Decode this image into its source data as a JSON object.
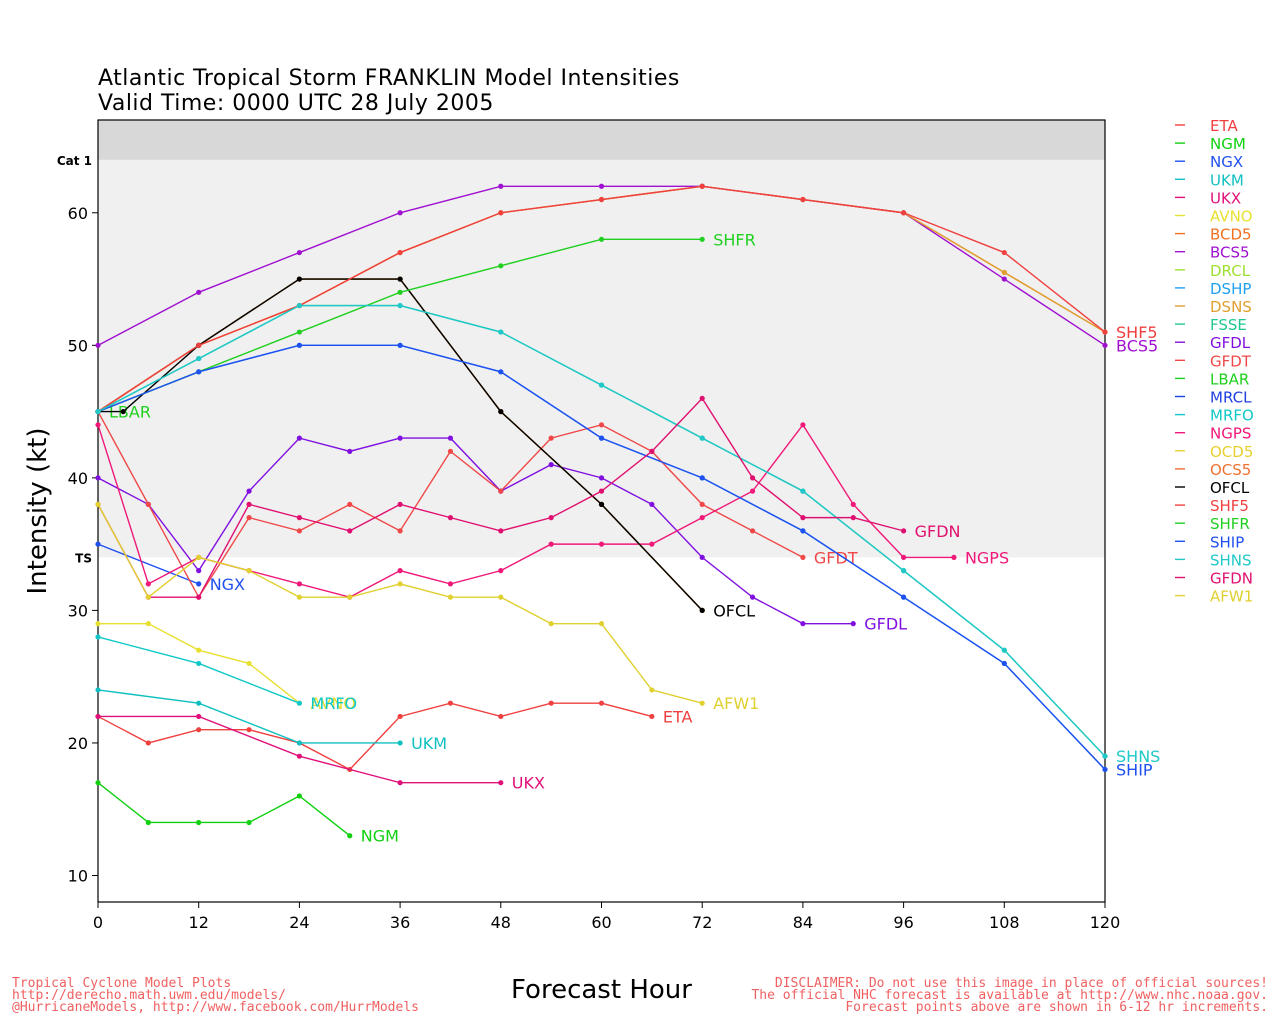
{
  "title": {
    "line1": "Atlantic Tropical Storm FRANKLIN Model Intensities",
    "line2": "Valid Time: 0000 UTC 28 July 2005"
  },
  "footer": {
    "left": [
      "Tropical Cyclone Model Plots",
      "http://derecho.math.uwm.edu/models/",
      "@HurricaneModels, http://www.facebook.com/HurrModels"
    ],
    "right": [
      "DISCLAIMER: Do not use this image in place of official sources!",
      "The official NHC forecast is available at http://www.nhc.noaa.gov.",
      "Forecast points above are shown in 6-12 hr increments."
    ]
  },
  "chart_data": {
    "type": "line",
    "title": "Atlantic Tropical Storm FRANKLIN Model Intensities",
    "subtitle": "Valid Time: 0000 UTC 28 July 2005",
    "xlabel": "Forecast Hour",
    "ylabel": "Intensity (kt)",
    "xlim": [
      0,
      120
    ],
    "ylim": [
      8,
      67
    ],
    "x_ticks": [
      0,
      12,
      24,
      36,
      48,
      60,
      72,
      84,
      96,
      108,
      120
    ],
    "y_ticks": [
      10,
      20,
      30,
      40,
      50,
      60
    ],
    "bands": [
      {
        "label": "TS",
        "from": 34,
        "to": 64,
        "color": "#f0f0f0"
      },
      {
        "label": "Cat 1",
        "from": 64,
        "to": 67,
        "color": "#d8d8d8"
      }
    ],
    "legend_position": "right",
    "series": [
      {
        "name": "ETA",
        "color": "#f04040",
        "x": [
          0,
          6,
          12,
          18,
          24,
          30,
          36,
          42,
          48,
          54,
          60,
          66
        ],
        "y": [
          22,
          20,
          21,
          21,
          20,
          18,
          22,
          23,
          22,
          23,
          23,
          22
        ],
        "label": "ETA"
      },
      {
        "name": "NGM",
        "color": "#10d010",
        "x": [
          0,
          6,
          12,
          18,
          24,
          30
        ],
        "y": [
          17,
          14,
          14,
          14,
          16,
          13
        ],
        "label": "NGM"
      },
      {
        "name": "NGX",
        "color": "#2050f0",
        "x": [
          0,
          12
        ],
        "y": [
          35,
          32
        ],
        "label": "NGX"
      },
      {
        "name": "UKM",
        "color": "#10c0c0",
        "x": [
          0,
          12,
          24,
          36
        ],
        "y": [
          24,
          23,
          20,
          20
        ],
        "label": "UKM"
      },
      {
        "name": "UKX",
        "color": "#e0107a",
        "x": [
          0,
          12,
          24,
          36,
          48
        ],
        "y": [
          22,
          22,
          19,
          17,
          17
        ],
        "label": "UKX"
      },
      {
        "name": "AVNO",
        "color": "#e8e030",
        "x": [
          0,
          6,
          12,
          18,
          24
        ],
        "y": [
          29,
          29,
          27,
          26,
          23
        ],
        "label": "AVNO"
      },
      {
        "name": "BCD5",
        "color": "#f07020",
        "x": [
          0,
          12,
          24,
          36,
          48,
          60,
          72,
          84,
          96,
          108,
          120
        ],
        "y": [
          45,
          50,
          53,
          57,
          60,
          61,
          62,
          61,
          60,
          55.5,
          51
        ],
        "label": ""
      },
      {
        "name": "BCS5",
        "color": "#a010d0",
        "x": [
          0,
          12,
          24,
          36,
          48,
          60,
          72,
          84,
          96,
          108,
          120
        ],
        "y": [
          50,
          54,
          57,
          60,
          62,
          62,
          62,
          61,
          60,
          55,
          50
        ],
        "label": "BCS5"
      },
      {
        "name": "DRCL",
        "color": "#a0e030",
        "x": [
          0,
          12,
          24,
          36,
          48,
          60,
          72
        ],
        "y": [
          45,
          50,
          55,
          55,
          45,
          38,
          30
        ],
        "label": ""
      },
      {
        "name": "DSHP",
        "color": "#20a0f0",
        "x": [
          0,
          12,
          24,
          36,
          48,
          60,
          72,
          84,
          96,
          108,
          120
        ],
        "y": [
          45,
          48,
          50,
          50,
          48,
          43,
          40,
          36,
          31,
          26,
          18
        ],
        "label": ""
      },
      {
        "name": "DSNS",
        "color": "#e0a030",
        "x": [
          0,
          12,
          24,
          36,
          48,
          60,
          72,
          84,
          96,
          108,
          120
        ],
        "y": [
          45,
          50,
          53,
          57,
          60,
          61,
          62,
          61,
          60,
          55.5,
          51
        ],
        "label": ""
      },
      {
        "name": "FSSE",
        "color": "#20c890",
        "x": [
          0,
          12,
          24,
          36,
          48,
          60,
          72,
          84,
          96,
          108,
          120
        ],
        "y": [
          45,
          49,
          53,
          53,
          51,
          47,
          43,
          39,
          33,
          27,
          19
        ],
        "label": ""
      },
      {
        "name": "GFDL",
        "color": "#8010e0",
        "x": [
          0,
          6,
          12,
          18,
          24,
          30,
          36,
          42,
          48,
          54,
          60,
          66,
          72,
          78,
          84,
          90
        ],
        "y": [
          40,
          38,
          33,
          39,
          43,
          42,
          43,
          43,
          39,
          41,
          40,
          38,
          34,
          31,
          29,
          29
        ],
        "label": "GFDL"
      },
      {
        "name": "GFDT",
        "color": "#f04848",
        "x": [
          0,
          6,
          12,
          18,
          24,
          30,
          36,
          42,
          48,
          54,
          60,
          66,
          72,
          78,
          84
        ],
        "y": [
          45,
          38,
          31,
          37,
          36,
          38,
          36,
          42,
          39,
          43,
          44,
          42,
          38,
          36,
          34
        ],
        "label": "GFDT"
      },
      {
        "name": "LBAR",
        "color": "#20d020",
        "x": [
          0
        ],
        "y": [
          45
        ],
        "label": "LBAR"
      },
      {
        "name": "MRCL",
        "color": "#2040e0",
        "x": [
          0,
          12,
          24,
          36,
          48,
          60,
          72
        ],
        "y": [
          45,
          50,
          55,
          55,
          45,
          38,
          30
        ],
        "label": ""
      },
      {
        "name": "MRFO",
        "color": "#10c8c8",
        "x": [
          0,
          12,
          24
        ],
        "y": [
          28,
          26,
          23
        ],
        "label": "MRFO"
      },
      {
        "name": "NGPS",
        "color": "#f01878",
        "x": [
          0,
          6,
          12,
          18,
          24,
          30,
          36,
          42,
          48,
          54,
          60,
          66,
          72,
          78,
          84,
          90,
          96,
          102
        ],
        "y": [
          44,
          32,
          34,
          33,
          32,
          31,
          33,
          32,
          33,
          35,
          35,
          35,
          37,
          39,
          44,
          38,
          34,
          34
        ],
        "label": "NGPS"
      },
      {
        "name": "OCD5",
        "color": "#e8d030",
        "x": [
          0,
          12,
          24,
          36,
          48,
          60,
          72
        ],
        "y": [
          45,
          50,
          55,
          55,
          45,
          38,
          30
        ],
        "label": ""
      },
      {
        "name": "OCS5",
        "color": "#f07030",
        "x": [
          0,
          12,
          24,
          36,
          48,
          60,
          72
        ],
        "y": [
          45,
          50,
          55,
          55,
          45,
          38,
          30
        ],
        "label": ""
      },
      {
        "name": "OFCL",
        "color": "#000000",
        "x": [
          0,
          3,
          12,
          24,
          36,
          48,
          60,
          72
        ],
        "y": [
          45,
          45,
          50,
          55,
          55,
          45,
          38,
          30
        ],
        "label": "OFCL"
      },
      {
        "name": "SHF5",
        "color": "#f04040",
        "x": [
          0,
          12,
          24,
          36,
          48,
          60,
          72,
          84,
          96,
          108,
          120
        ],
        "y": [
          45,
          50,
          53,
          57,
          60,
          61,
          62,
          61,
          60,
          57,
          51
        ],
        "label": "SHF5"
      },
      {
        "name": "SHFR",
        "color": "#20d020",
        "x": [
          0,
          12,
          24,
          36,
          48,
          60,
          72
        ],
        "y": [
          45,
          48,
          51,
          54,
          56,
          58,
          58
        ],
        "label": "SHFR"
      },
      {
        "name": "SHIP",
        "color": "#2050f0",
        "x": [
          0,
          12,
          24,
          36,
          48,
          60,
          72,
          84,
          96,
          108,
          120
        ],
        "y": [
          45,
          48,
          50,
          50,
          48,
          43,
          40,
          36,
          31,
          26,
          18
        ],
        "label": "SHIP"
      },
      {
        "name": "SHNS",
        "color": "#20c8c8",
        "x": [
          0,
          12,
          24,
          36,
          48,
          60,
          72,
          84,
          96,
          108,
          120
        ],
        "y": [
          45,
          49,
          53,
          53,
          51,
          47,
          43,
          39,
          33,
          27,
          19
        ],
        "label": "SHNS"
      },
      {
        "name": "GFDN",
        "color": "#e01070",
        "x": [
          0,
          6,
          12,
          18,
          24,
          30,
          36,
          42,
          48,
          54,
          60,
          66,
          72,
          78,
          84,
          90,
          96
        ],
        "y": [
          38,
          31,
          31,
          38,
          37,
          36,
          38,
          37,
          36,
          37,
          39,
          42,
          46,
          40,
          37,
          37,
          36
        ],
        "label": "GFDN"
      },
      {
        "name": "AFW1",
        "color": "#e0d030",
        "x": [
          0,
          6,
          12,
          18,
          24,
          30,
          36,
          42,
          48,
          54,
          60,
          66,
          72
        ],
        "y": [
          38,
          31,
          34,
          33,
          31,
          31,
          32,
          31,
          31,
          29,
          29,
          24,
          23
        ],
        "label": "AFW1"
      }
    ]
  }
}
